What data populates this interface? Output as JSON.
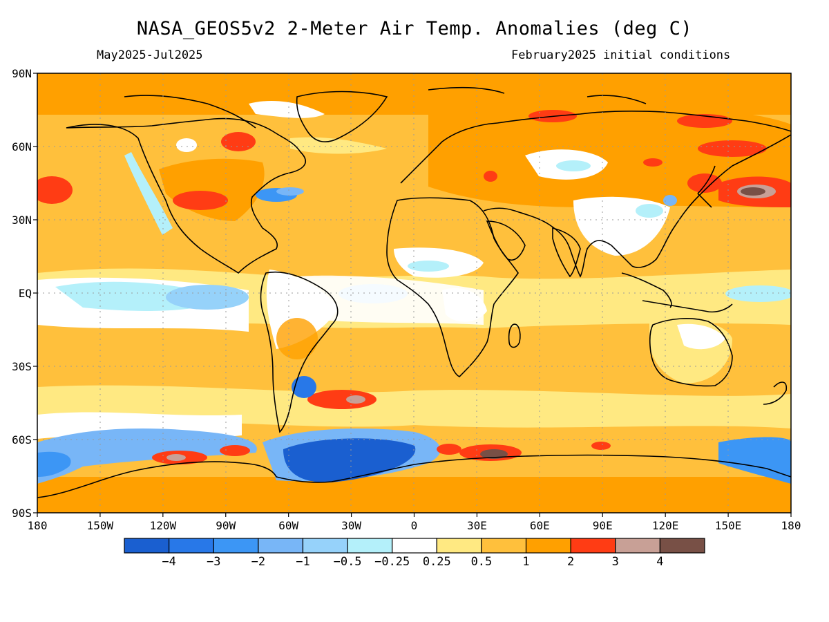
{
  "title": "NASA_GEOS5v2 2-Meter Air Temp. Anomalies (deg C)",
  "subtitle_left": "May2025-Jul2025",
  "subtitle_right": "February2025 initial conditions",
  "lat_labels": [
    "90N",
    "60N",
    "30N",
    "EQ",
    "30S",
    "60S",
    "90S"
  ],
  "lon_labels": [
    "180",
    "150W",
    "120W",
    "90W",
    "60W",
    "30W",
    "0",
    "30E",
    "60E",
    "90E",
    "120E",
    "150E",
    "180"
  ],
  "colorbar": {
    "colors": [
      "#1a5fd0",
      "#2878e8",
      "#3c96f5",
      "#78b6f7",
      "#96d2fa",
      "#b4f0fa",
      "#ffffff",
      "#ffe982",
      "#ffc03c",
      "#ffa000",
      "#ff3c14",
      "#c8a096",
      "#785046"
    ],
    "labels": [
      "-4",
      "-3",
      "-2",
      "-1",
      "-0.5",
      "-0.25",
      "0.25",
      "0.5",
      "1",
      "2",
      "3",
      "4"
    ]
  },
  "map_colors": {
    "ocean_base": "#ffc03c",
    "land_outline": "#000000",
    "grid": "#9a9a9a"
  }
}
